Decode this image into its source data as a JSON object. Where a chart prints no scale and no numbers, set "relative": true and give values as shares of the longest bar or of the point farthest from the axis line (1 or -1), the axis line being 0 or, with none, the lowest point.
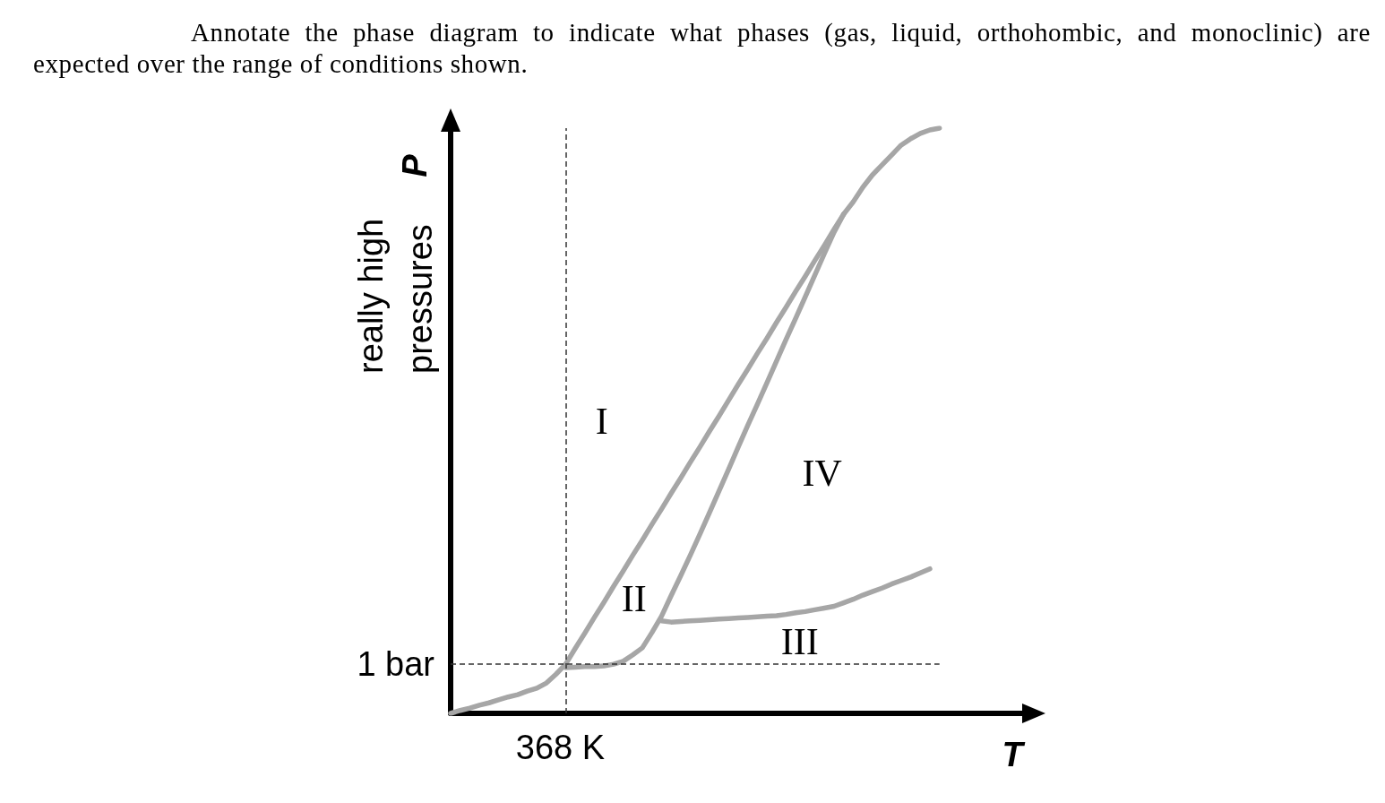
{
  "chart_data": {
    "type": "line",
    "title": "Annotate the phase diagram to indicate what phases (gas, liquid, orthohombic, and monoclinic) are expected over the range of conditions shown.",
    "xlabel": "T",
    "ylabel": "P",
    "relative": true,
    "line_style": "solid",
    "categories": [
      null,
      null,
      null,
      null,
      null,
      null,
      null,
      null,
      null,
      null,
      null,
      null,
      null,
      null,
      null,
      null,
      null,
      null,
      null,
      null,
      null,
      null,
      null,
      null,
      null,
      null,
      null,
      null,
      null,
      null,
      null,
      null,
      null,
      null,
      null,
      null,
      null,
      null,
      null,
      null,
      null,
      null,
      null,
      null,
      null,
      null,
      null,
      null,
      null,
      null,
      null,
      null,
      null,
      null,
      null,
      null,
      null,
      null,
      null,
      null,
      null
    ],
    "series": [
      {
        "color": "#a6a6a6",
        "values": [
          0,
          0.005,
          0.009,
          0.014,
          0.018,
          0.023,
          0.028,
          0.032,
          0.038,
          0.043,
          0.052,
          0.067,
          0.084,
          null,
          null,
          null,
          null,
          null,
          null,
          null,
          null,
          null,
          null,
          null,
          null,
          null,
          null,
          null,
          null,
          null,
          null,
          null,
          null,
          null,
          null,
          null,
          null,
          null,
          null,
          null,
          null,
          null,
          null,
          null,
          null,
          null,
          null,
          null,
          null,
          null,
          null,
          null,
          null,
          null,
          null,
          null,
          null,
          null,
          null,
          null,
          null
        ]
      },
      {
        "color": "#a6a6a6",
        "values": [
          null,
          null,
          null,
          null,
          null,
          null,
          null,
          null,
          null,
          null,
          null,
          null,
          0.084,
          0.111,
          0.137,
          0.164,
          0.19,
          0.217,
          0.243,
          0.27,
          0.296,
          0.323,
          0.349,
          0.376,
          0.402,
          0.429,
          0.455,
          0.482,
          0.508,
          0.535,
          0.562,
          0.588,
          0.615,
          0.641,
          0.668,
          0.694,
          0.721,
          0.747,
          0.774,
          0.8,
          0.827,
          0.853,
          null,
          null,
          null,
          null,
          null,
          null,
          null,
          null,
          null,
          null,
          null,
          null,
          null,
          null,
          null,
          null,
          null,
          null,
          null
        ]
      },
      {
        "color": "#a6a6a6",
        "values": [
          null,
          null,
          null,
          null,
          null,
          null,
          null,
          null,
          null,
          null,
          null,
          null,
          null,
          null,
          null,
          null,
          null,
          null,
          null,
          null,
          null,
          null,
          null,
          null,
          null,
          null,
          null,
          null,
          null,
          null,
          null,
          null,
          null,
          null,
          null,
          null,
          null,
          null,
          null,
          null,
          null,
          0.853,
          0.874,
          0.899,
          0.92,
          0.937,
          0.954,
          0.971,
          0.982,
          0.991,
          0.997,
          1,
          null,
          null,
          null,
          null,
          null,
          null,
          null,
          null,
          null
        ]
      },
      {
        "color": "#a6a6a6",
        "values": [
          null,
          null,
          null,
          null,
          null,
          null,
          null,
          null,
          null,
          null,
          null,
          null,
          0.078,
          0.079,
          0.08,
          0.08,
          0.081,
          0.084,
          0.089,
          0.1,
          0.112,
          0.138,
          0.166,
          0.201,
          0.235,
          0.27,
          0.306,
          0.343,
          0.38,
          0.417,
          0.455,
          0.492,
          0.528,
          0.565,
          0.602,
          0.639,
          0.675,
          0.712,
          0.749,
          0.786,
          0.822,
          0.853,
          null,
          null,
          null,
          null,
          null,
          null,
          null,
          null,
          null,
          null,
          null,
          null,
          null,
          null,
          null,
          null,
          null,
          null,
          null
        ]
      },
      {
        "color": "#a6a6a6",
        "values": [
          null,
          null,
          null,
          null,
          null,
          null,
          null,
          null,
          null,
          null,
          null,
          null,
          null,
          null,
          null,
          null,
          null,
          null,
          null,
          null,
          null,
          null,
          0.158,
          0.156,
          0.157,
          0.158,
          0.159,
          0.16,
          0.161,
          0.162,
          0.163,
          0.164,
          0.165,
          0.166,
          0.167,
          0.169,
          0.172,
          0.174,
          0.177,
          0.18,
          0.183,
          0.189,
          0.195,
          0.202,
          0.208,
          0.214,
          0.221,
          0.227,
          0.233,
          0.24,
          0.247,
          null,
          null,
          null,
          null,
          null,
          null,
          null,
          null,
          null,
          null
        ]
      }
    ],
    "ref_lines": [
      {
        "axis": "y",
        "value": 0.084,
        "label": "1 bar",
        "color": "#333333",
        "line_style": "dashed"
      }
    ],
    "annotations": [
      "really high pressures",
      "I",
      "II",
      "III",
      "IV",
      "368 K"
    ]
  }
}
